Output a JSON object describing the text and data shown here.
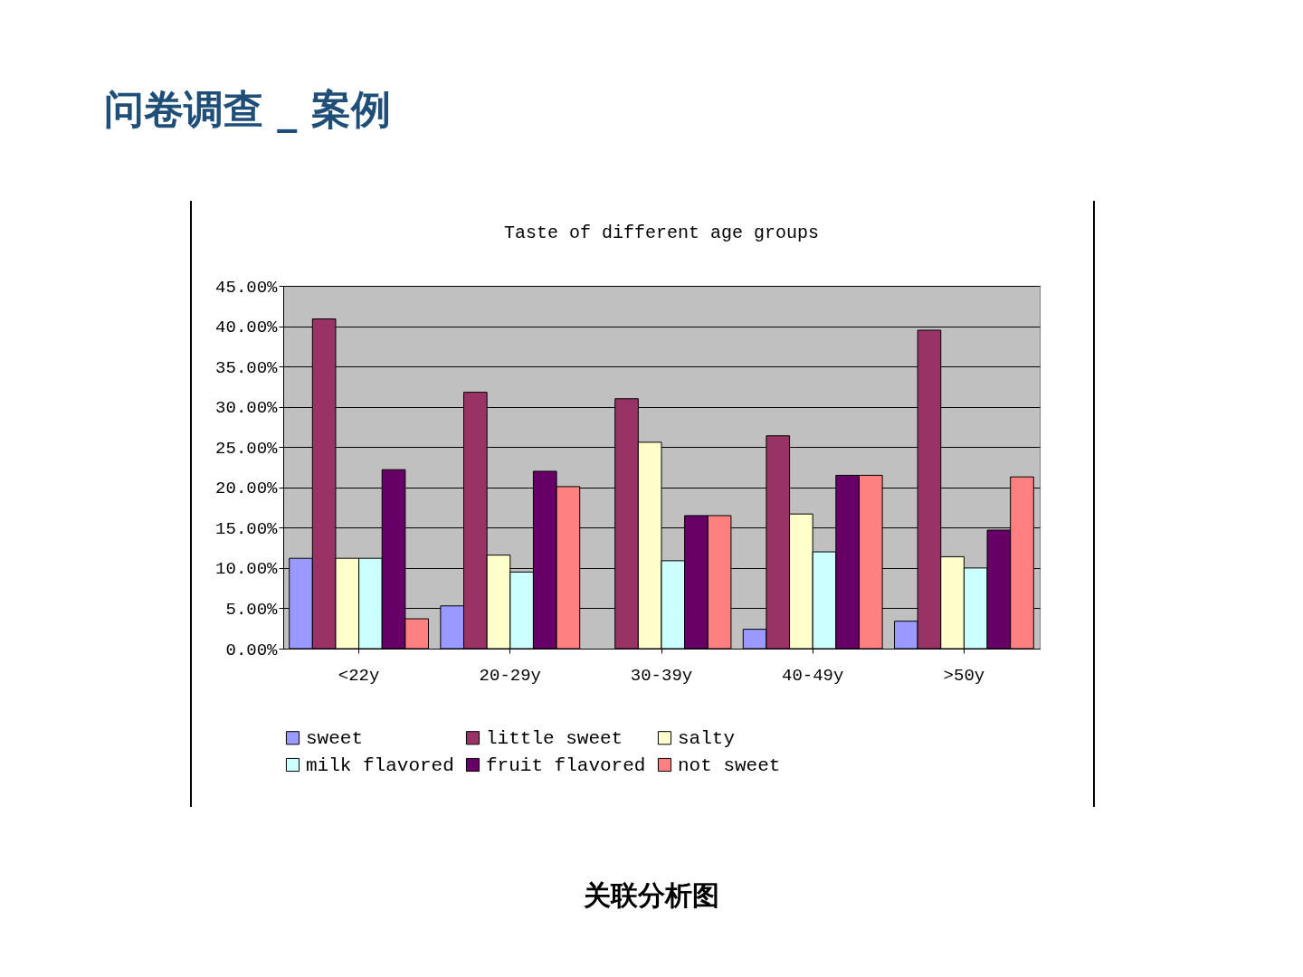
{
  "chart_data": {
    "type": "bar",
    "title": "问卷调查 _ 案例",
    "subtitle": "Taste of different age groups",
    "annotations": [
      "关联分析图"
    ],
    "categories": [
      "<22y",
      "20-29y",
      "30-39y",
      "40-49y",
      ">50y"
    ],
    "series": [
      {
        "name": "sweet",
        "color": "#9999ff",
        "values": [
          11.2,
          5.3,
          null,
          2.4,
          3.4
        ]
      },
      {
        "name": "little sweet",
        "color": "#993366",
        "values": [
          40.9,
          31.8,
          31.0,
          26.4,
          39.5
        ]
      },
      {
        "name": "salty",
        "color": "#ffffcc",
        "values": [
          11.2,
          11.6,
          25.6,
          16.7,
          11.4
        ]
      },
      {
        "name": "milk flavored",
        "color": "#ccffff",
        "values": [
          11.2,
          9.5,
          10.9,
          12.0,
          10.0
        ]
      },
      {
        "name": "fruit flavored",
        "color": "#660066",
        "values": [
          22.2,
          22.0,
          16.5,
          21.5,
          14.7
        ]
      },
      {
        "name": "not sweet",
        "color": "#ff8080",
        "values": [
          3.7,
          20.1,
          16.5,
          21.5,
          21.3
        ]
      }
    ],
    "ylim": [
      0,
      45
    ],
    "yticks": [
      {
        "value": 0,
        "label": "0.00%"
      },
      {
        "value": 5,
        "label": "5.00%"
      },
      {
        "value": 10,
        "label": "10.00%"
      },
      {
        "value": 15,
        "label": "15.00%"
      },
      {
        "value": 20,
        "label": "20.00%"
      },
      {
        "value": 25,
        "label": "25.00%"
      },
      {
        "value": 30,
        "label": "30.00%"
      },
      {
        "value": 35,
        "label": "35.00%"
      },
      {
        "value": 40,
        "label": "40.00%"
      },
      {
        "value": 45,
        "label": "45.00%"
      }
    ],
    "grid": "y",
    "legend": "bottom"
  }
}
